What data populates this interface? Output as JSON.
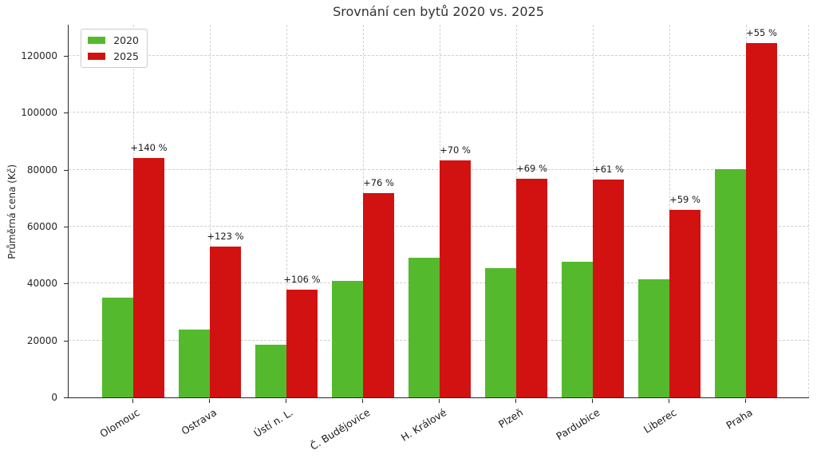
{
  "chart_data": {
    "type": "bar",
    "title": "Srovnání cen bytů 2020 vs. 2025",
    "xlabel": "",
    "ylabel": "Průměrná cena (Kč)",
    "categories": [
      "Olomouc",
      "Ostrava",
      "Ústí n. L.",
      "Č. Budějovice",
      "H. Králové",
      "Plzeň",
      "Pardubice",
      "Liberec",
      "Praha"
    ],
    "series": [
      {
        "name": "2020",
        "color": "#55b92d",
        "values": [
          35000,
          23800,
          18400,
          40800,
          49000,
          45500,
          47600,
          41400,
          80300
        ]
      },
      {
        "name": "2025",
        "color": "#d21111",
        "values": [
          84000,
          53000,
          37900,
          71800,
          83300,
          76900,
          76600,
          65800,
          124500
        ]
      }
    ],
    "annotations": [
      "+140 %",
      "+123 %",
      "+106 %",
      "+76 %",
      "+70 %",
      "+69 %",
      "+61 %",
      "+59 %",
      "+55 %"
    ],
    "yticks": [
      0,
      20000,
      40000,
      60000,
      80000,
      100000,
      120000
    ],
    "ylim": [
      0,
      131200
    ],
    "grid": true,
    "grid_style": "dashed",
    "legend_position": "upper left",
    "colors": {
      "bar_2020": "#55b92d",
      "bar_2025": "#d21111",
      "grid": "#cfcfcf",
      "axis": "#262626",
      "title": "#333333"
    }
  }
}
